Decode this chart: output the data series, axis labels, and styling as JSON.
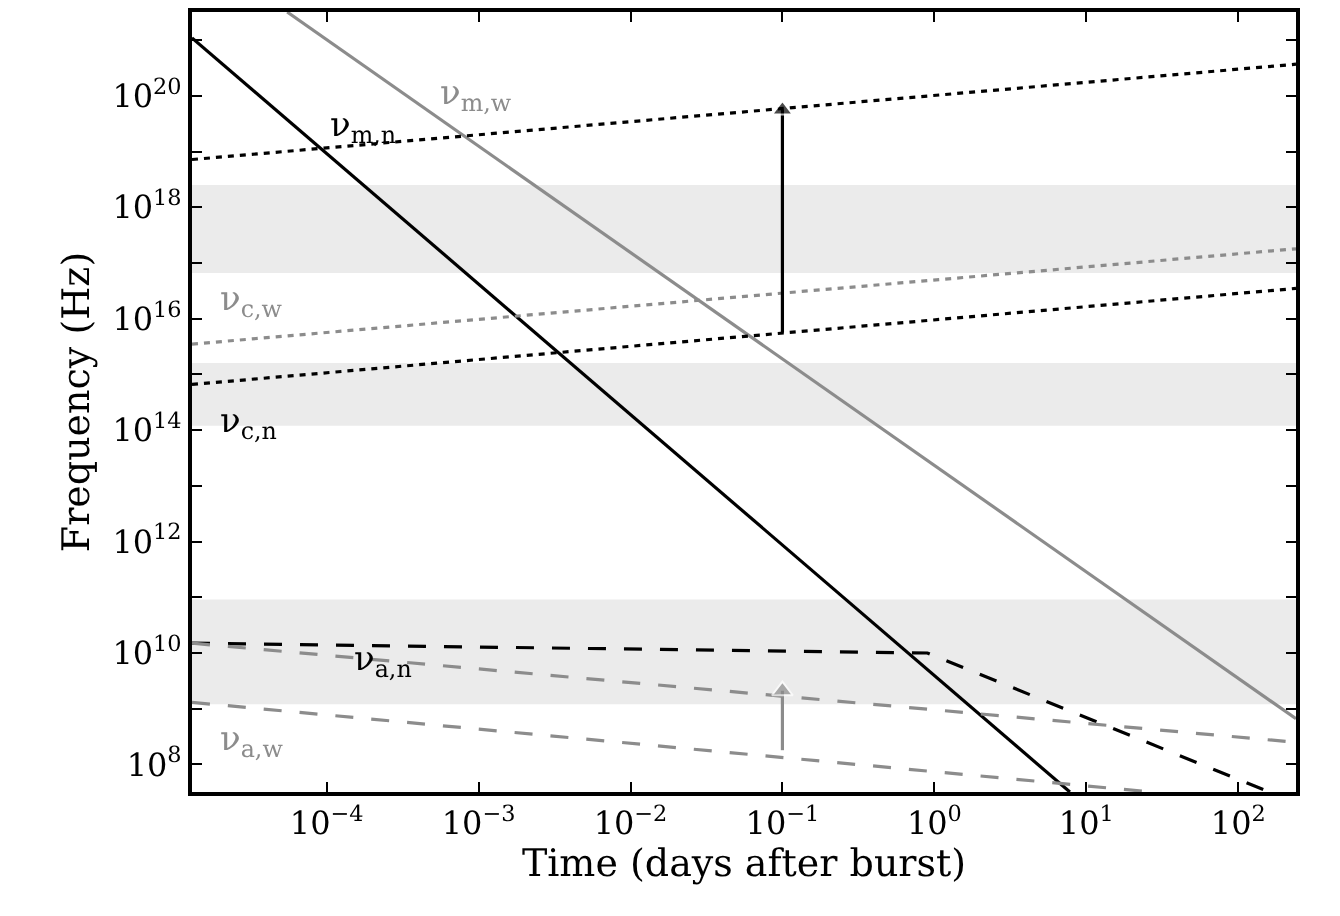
{
  "chart_data": {
    "type": "line",
    "xlabel": "Time (days after burst)",
    "ylabel": "Frequency (Hz)",
    "log": "xy",
    "grid": false,
    "legend": false,
    "marker": "none",
    "xlim": [
      1.3e-05,
      240
    ],
    "ylim": [
      32000000.0,
      3.2e+21
    ],
    "xticks": [
      {
        "value": 0.0001,
        "label": "10$^{−4}$"
      },
      {
        "value": 0.001,
        "label": "10$^{−3}$"
      },
      {
        "value": 0.01,
        "label": "10$^{−2}$"
      },
      {
        "value": 0.1,
        "label": "10$^{−1}$"
      },
      {
        "value": 1,
        "label": "10$^{0}$"
      },
      {
        "value": 10,
        "label": "10$^{1}$"
      },
      {
        "value": 100,
        "label": "10$^{2}$"
      }
    ],
    "yticks": [
      {
        "value": 100000000.0,
        "label": "10$^{8}$"
      },
      {
        "value": 1000000000.0,
        "label": null
      },
      {
        "value": 10000000000.0,
        "label": "10$^{10}$"
      },
      {
        "value": 100000000000.0,
        "label": null
      },
      {
        "value": 1000000000000.0,
        "label": "10$^{12}$"
      },
      {
        "value": 10000000000000.0,
        "label": null
      },
      {
        "value": 100000000000000.0,
        "label": "10$^{14}$"
      },
      {
        "value": 1000000000000000.0,
        "label": null
      },
      {
        "value": 1e+16,
        "label": "10$^{16}$"
      },
      {
        "value": 1e+17,
        "label": null
      },
      {
        "value": 1e+18,
        "label": "10$^{18}$"
      },
      {
        "value": 1e+19,
        "label": null
      },
      {
        "value": 1e+20,
        "label": "10$^{20}$"
      },
      {
        "value": 1e+21,
        "label": null
      }
    ],
    "bands": [
      {
        "axis": "y",
        "from": 6.6e+16,
        "to": 2.5e+18,
        "color": "#ebebeb"
      },
      {
        "axis": "y",
        "from": 120000000000000.0,
        "to": 1600000000000000.0,
        "color": "#ebebeb"
      },
      {
        "axis": "y",
        "from": 1200000000.0,
        "to": 91000000000.0,
        "color": "#ebebeb"
      }
    ],
    "series": [
      {
        "name": "ν$_{m,n}$",
        "color": "#000000",
        "line_style": "solid",
        "x": [
          1.3e-05,
          7.8
        ],
        "values": [
          1.1e+21,
          32000000.0
        ]
      },
      {
        "name": "ν$_{m,w}$",
        "color": "#8c8c8c",
        "line_style": "solid",
        "x": [
          5.5e-05,
          240
        ],
        "values": [
          3.2e+21,
          660000000.0
        ]
      },
      {
        "color": "#000000",
        "line_style": "dotted",
        "x": [
          1.3e-05,
          240
        ],
        "values": [
          7.2e+18,
          3.7e+20
        ]
      },
      {
        "name": "ν$_{c,w}$",
        "color": "#8c8c8c",
        "line_style": "dotted",
        "x": [
          1.3e-05,
          240
        ],
        "values": [
          3500000000000000.0,
          1.8e+17
        ]
      },
      {
        "name": "ν$_{c,n}$",
        "color": "#000000",
        "line_style": "dotted",
        "x": [
          1.3e-05,
          240
        ],
        "values": [
          660000000000000.0,
          3.5e+16
        ]
      },
      {
        "name": "ν$_{a,n}$",
        "color": "#000000",
        "line_style": "dashed",
        "x": [
          1.3e-05,
          0.9,
          160
        ],
        "values": [
          15000000000.0,
          10000000000.0,
          32000000.0
        ]
      },
      {
        "color": "#8c8c8c",
        "line_style": "dashed",
        "x": [
          1.3e-05,
          240
        ],
        "values": [
          15000000000.0,
          250000000.0
        ]
      },
      {
        "name": "ν$_{a,w}$",
        "color": "#8c8c8c",
        "line_style": "dashed",
        "x": [
          1.3e-05,
          27
        ],
        "values": [
          1300000000.0,
          32000000.0
        ]
      },
      {
        "color": "#000000",
        "line_style": "solid",
        "marker": "triangle",
        "x": [
          0.1,
          0.1
        ],
        "values": [
          5600000000000000.0,
          5.6e+19
        ]
      },
      {
        "color": "#8c8c8c",
        "line_style": "solid",
        "marker": "triangle",
        "x": [
          0.1,
          0.1
        ],
        "values": [
          180000000.0,
          2100000000.0
        ]
      }
    ]
  }
}
